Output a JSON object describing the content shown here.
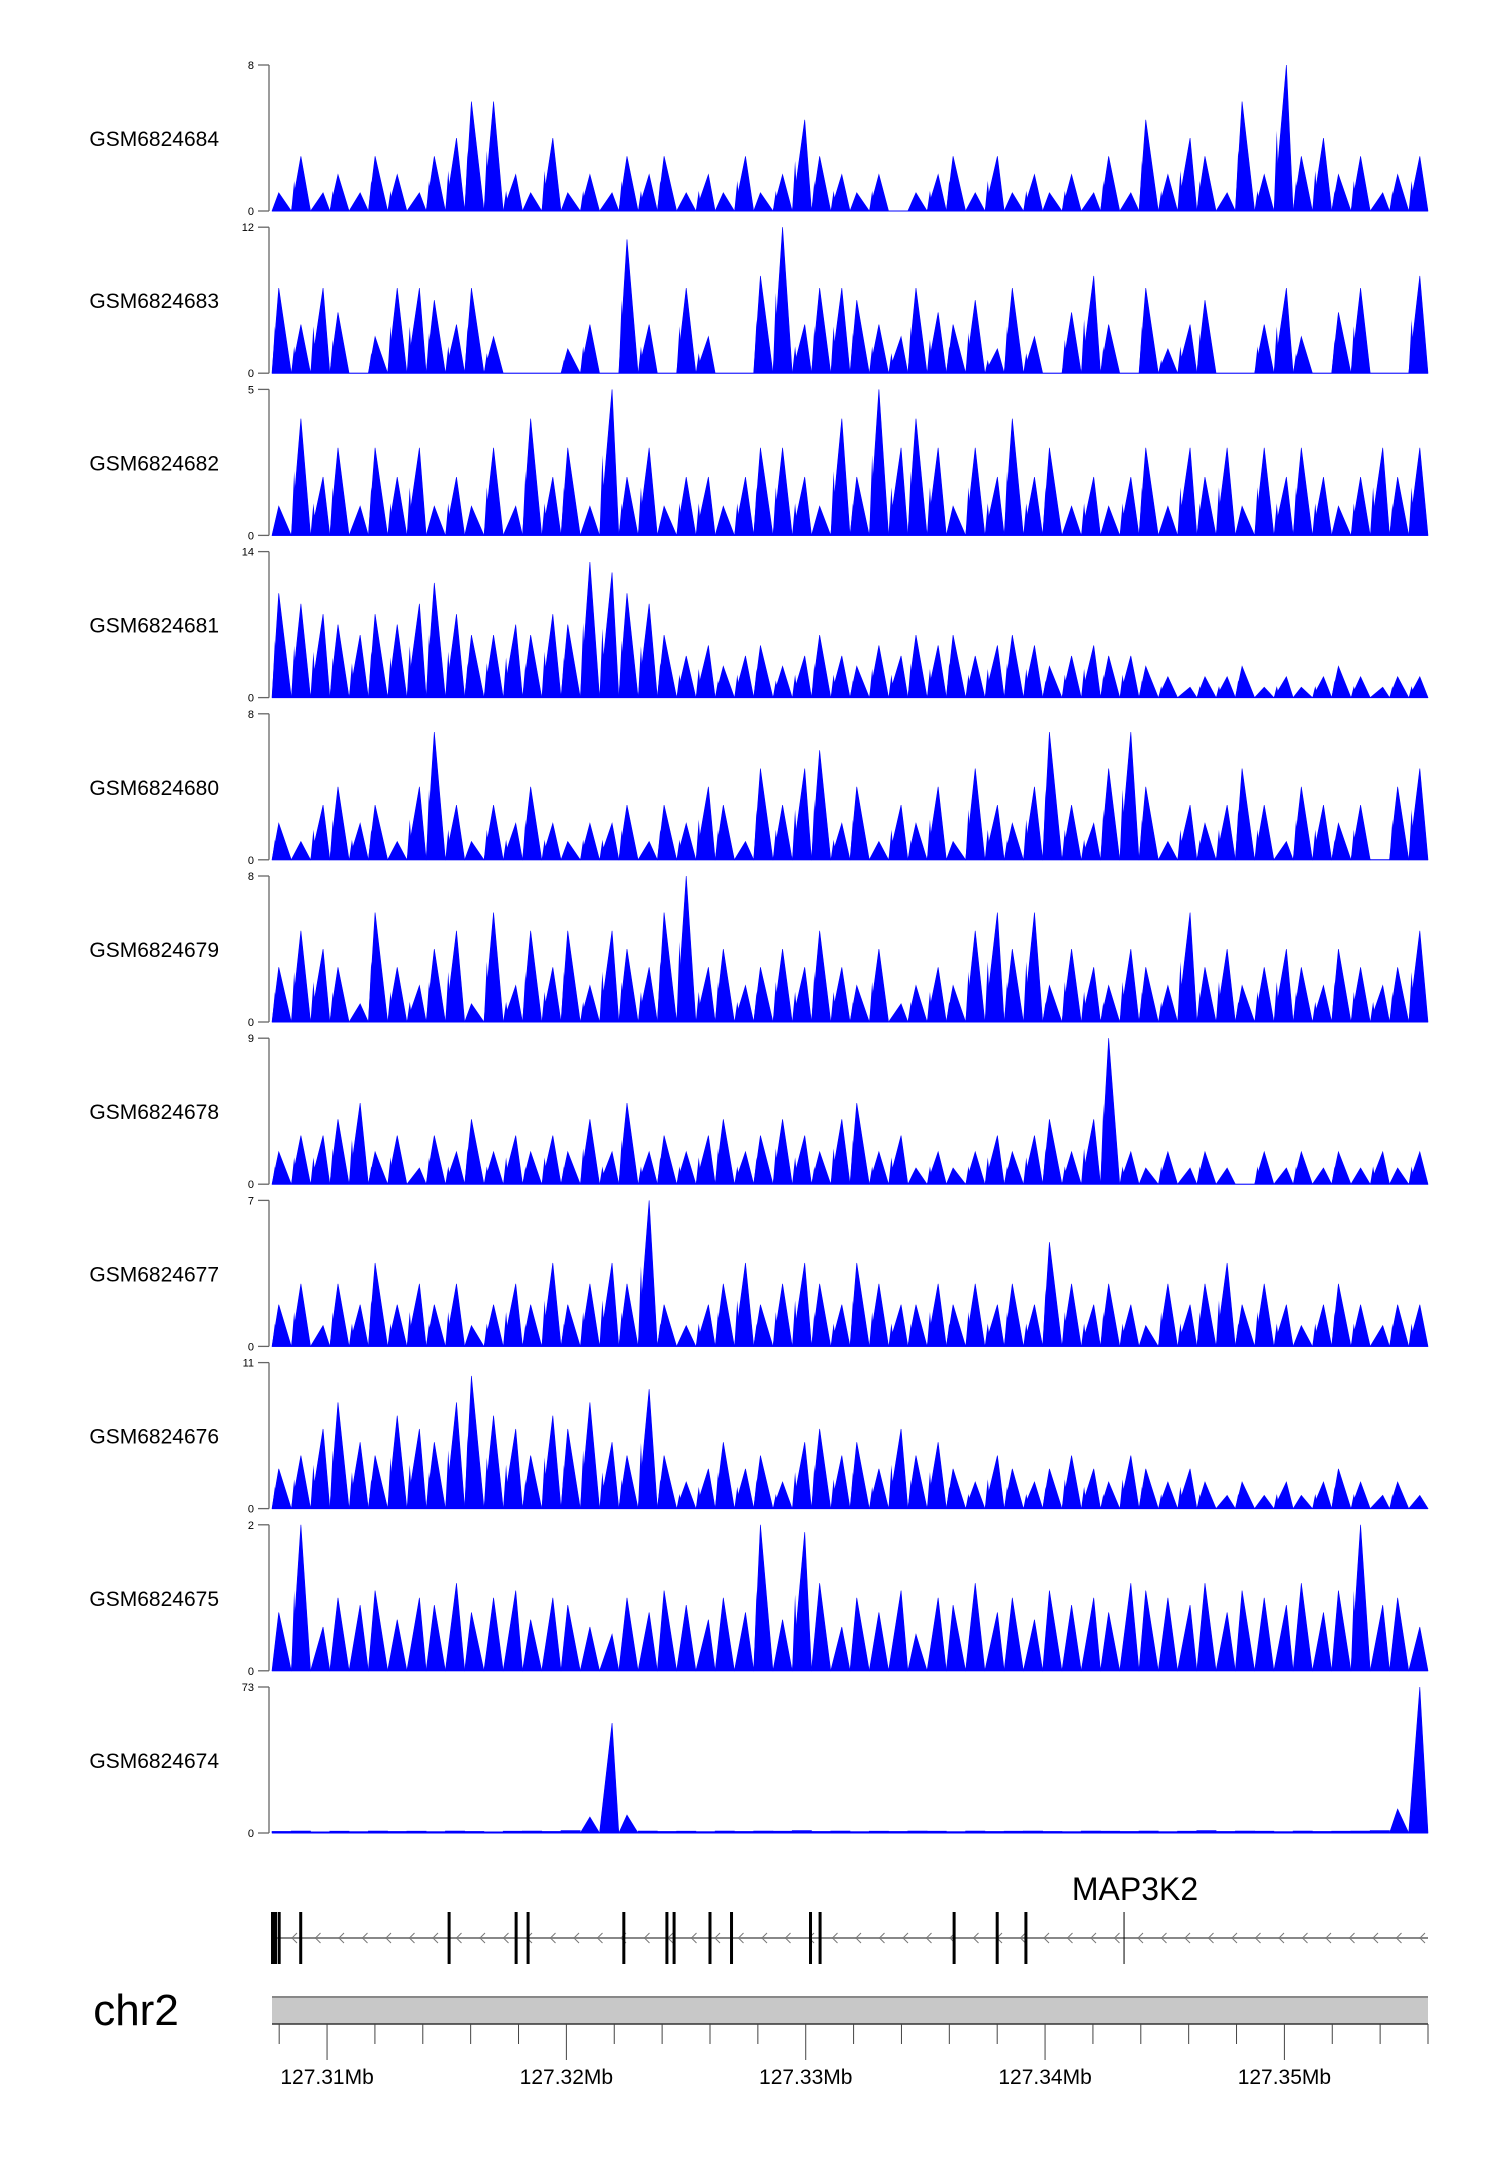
{
  "chart_data": {
    "type": "area",
    "title": "",
    "chromosome": "chr2",
    "gene_label": "MAP3K2",
    "xlim_mb": [
      127.3077,
      127.356
    ],
    "x_tick_labels": [
      "127.31Mb",
      "127.32Mb",
      "127.33Mb",
      "127.34Mb",
      "127.35Mb"
    ],
    "x_tick_values_mb": [
      127.31,
      127.32,
      127.33,
      127.34,
      127.35
    ],
    "minor_tick_step_mb": 0.002,
    "series_color": "#0000ff",
    "tracks": [
      {
        "name": "GSM6824684",
        "ymax": 8,
        "ymin": 0,
        "values": [
          1,
          3,
          1,
          2,
          1,
          3,
          2,
          1,
          3,
          4,
          6,
          6,
          2,
          1,
          4,
          1,
          2,
          1,
          3,
          2,
          3,
          1,
          2,
          1,
          3,
          1,
          2,
          5,
          3,
          2,
          1,
          2,
          0,
          1,
          2,
          3,
          1,
          3,
          1,
          2,
          1,
          2,
          1,
          3,
          1,
          5,
          2,
          4,
          3,
          1,
          6,
          2,
          8,
          3,
          4,
          2,
          3,
          1,
          2,
          3
        ]
      },
      {
        "name": "GSM6824683",
        "ymax": 12,
        "ymin": 0,
        "values": [
          7,
          4,
          7,
          5,
          0,
          3,
          7,
          7,
          6,
          4,
          7,
          3,
          0,
          0,
          0,
          2,
          4,
          0,
          11,
          4,
          0,
          7,
          3,
          0,
          0,
          8,
          12,
          4,
          7,
          7,
          6,
          4,
          3,
          7,
          5,
          4,
          6,
          2,
          7,
          3,
          0,
          5,
          8,
          4,
          0,
          7,
          2,
          4,
          6,
          0,
          0,
          4,
          7,
          3,
          0,
          5,
          7,
          0,
          0,
          8
        ]
      },
      {
        "name": "GSM6824682",
        "ymax": 5,
        "ymin": 0,
        "values": [
          1,
          4,
          2,
          3,
          1,
          3,
          2,
          3,
          1,
          2,
          1,
          3,
          1,
          4,
          2,
          3,
          1,
          5,
          2,
          3,
          1,
          2,
          2,
          1,
          2,
          3,
          3,
          2,
          1,
          4,
          2,
          5,
          3,
          4,
          3,
          1,
          3,
          2,
          4,
          2,
          3,
          1,
          2,
          1,
          2,
          3,
          1,
          3,
          2,
          3,
          1,
          3,
          2,
          3,
          2,
          1,
          2,
          3,
          2,
          3
        ]
      },
      {
        "name": "GSM6824681",
        "ymax": 14,
        "ymin": 0,
        "values": [
          10,
          9,
          8,
          7,
          6,
          8,
          7,
          9,
          11,
          8,
          6,
          6,
          7,
          6,
          8,
          7,
          13,
          12,
          10,
          9,
          6,
          4,
          5,
          3,
          4,
          5,
          3,
          4,
          6,
          4,
          3,
          5,
          4,
          6,
          5,
          6,
          4,
          5,
          6,
          5,
          3,
          4,
          5,
          4,
          4,
          3,
          2,
          1,
          2,
          2,
          3,
          1,
          2,
          1,
          2,
          3,
          2,
          1,
          2,
          2
        ]
      },
      {
        "name": "GSM6824680",
        "ymax": 8,
        "ymin": 0,
        "values": [
          2,
          1,
          3,
          4,
          2,
          3,
          1,
          4,
          7,
          3,
          1,
          3,
          2,
          4,
          2,
          1,
          2,
          2,
          3,
          1,
          3,
          2,
          4,
          3,
          1,
          5,
          3,
          5,
          6,
          2,
          4,
          1,
          3,
          2,
          4,
          1,
          5,
          3,
          2,
          4,
          7,
          3,
          2,
          5,
          7,
          4,
          1,
          3,
          2,
          3,
          5,
          3,
          1,
          4,
          3,
          2,
          3,
          0,
          4,
          5
        ]
      },
      {
        "name": "GSM6824679",
        "ymax": 8,
        "ymin": 0,
        "values": [
          3,
          5,
          4,
          3,
          1,
          6,
          3,
          2,
          4,
          5,
          1,
          6,
          2,
          5,
          3,
          5,
          2,
          5,
          4,
          3,
          6,
          8,
          3,
          4,
          2,
          3,
          4,
          3,
          5,
          3,
          2,
          4,
          1,
          2,
          3,
          2,
          5,
          6,
          4,
          6,
          2,
          4,
          3,
          2,
          4,
          3,
          2,
          6,
          3,
          4,
          2,
          3,
          4,
          3,
          2,
          4,
          3,
          2,
          3,
          5
        ]
      },
      {
        "name": "GSM6824678",
        "ymax": 9,
        "ymin": 0,
        "values": [
          2,
          3,
          3,
          4,
          5,
          2,
          3,
          1,
          3,
          2,
          4,
          2,
          3,
          2,
          3,
          2,
          4,
          2,
          5,
          2,
          3,
          2,
          3,
          4,
          2,
          3,
          4,
          3,
          2,
          4,
          5,
          2,
          3,
          1,
          2,
          1,
          2,
          3,
          2,
          3,
          4,
          2,
          4,
          9,
          2,
          1,
          2,
          1,
          2,
          1,
          0,
          2,
          1,
          2,
          1,
          2,
          1,
          2,
          1,
          2
        ]
      },
      {
        "name": "GSM6824677",
        "ymax": 7,
        "ymin": 0,
        "values": [
          2,
          3,
          1,
          3,
          2,
          4,
          2,
          3,
          2,
          3,
          1,
          2,
          3,
          2,
          4,
          2,
          3,
          4,
          3,
          7,
          2,
          1,
          2,
          3,
          4,
          2,
          3,
          4,
          3,
          2,
          4,
          3,
          2,
          2,
          3,
          2,
          3,
          2,
          3,
          2,
          5,
          3,
          2,
          3,
          2,
          1,
          3,
          2,
          3,
          4,
          2,
          3,
          2,
          1,
          2,
          3,
          2,
          1,
          2,
          2
        ]
      },
      {
        "name": "GSM6824676",
        "ymax": 11,
        "ymin": 0,
        "values": [
          3,
          4,
          6,
          8,
          5,
          4,
          7,
          6,
          5,
          8,
          10,
          7,
          6,
          4,
          7,
          6,
          8,
          5,
          4,
          9,
          4,
          2,
          3,
          5,
          3,
          4,
          2,
          5,
          6,
          4,
          5,
          3,
          6,
          4,
          5,
          3,
          2,
          4,
          3,
          2,
          3,
          4,
          3,
          2,
          4,
          3,
          2,
          3,
          2,
          1,
          2,
          1,
          2,
          1,
          2,
          3,
          2,
          1,
          2,
          1
        ]
      },
      {
        "name": "GSM6824675",
        "ymax": 2,
        "ymin": 0,
        "values": [
          0.8,
          2,
          0.6,
          1,
          0.9,
          1.1,
          0.7,
          1,
          0.9,
          1.2,
          0.8,
          1,
          1.1,
          0.7,
          1,
          0.9,
          0.6,
          0.5,
          1,
          0.8,
          1.1,
          0.9,
          0.7,
          1,
          0.8,
          2,
          0.7,
          1.9,
          1.2,
          0.6,
          1,
          0.8,
          1.1,
          0.5,
          1,
          0.9,
          1.2,
          0.8,
          1,
          0.7,
          1.1,
          0.9,
          1,
          0.8,
          1.2,
          1.1,
          1,
          0.9,
          1.2,
          0.8,
          1.1,
          1,
          0.9,
          1.2,
          0.8,
          1.1,
          2,
          0.9,
          1,
          0.6
        ]
      },
      {
        "name": "GSM6824674",
        "ymax": 73,
        "ymin": 0,
        "values": [
          0.8,
          1,
          0.6,
          0.9,
          0.7,
          1,
          0.8,
          0.9,
          0.7,
          1,
          0.8,
          0.6,
          0.9,
          1,
          0.8,
          1.2,
          8,
          55,
          9,
          1,
          0.8,
          0.9,
          0.7,
          1,
          0.8,
          1,
          0.9,
          1.2,
          0.8,
          1,
          0.7,
          0.9,
          0.8,
          1,
          0.9,
          0.7,
          1,
          0.8,
          0.9,
          1,
          0.8,
          0.7,
          1,
          0.9,
          0.8,
          1,
          0.7,
          0.9,
          1.2,
          0.8,
          1,
          0.9,
          0.7,
          1,
          0.8,
          0.9,
          1,
          1.2,
          12,
          73
        ]
      }
    ],
    "exons_mb": [
      127.3078,
      127.308,
      127.3089,
      127.3151,
      127.3179,
      127.3184,
      127.3224,
      127.3242,
      127.3245,
      127.326,
      127.3269,
      127.3302,
      127.3306,
      127.3362,
      127.338,
      127.3392
    ],
    "tss_mb": 127.3433,
    "strand": "-"
  }
}
